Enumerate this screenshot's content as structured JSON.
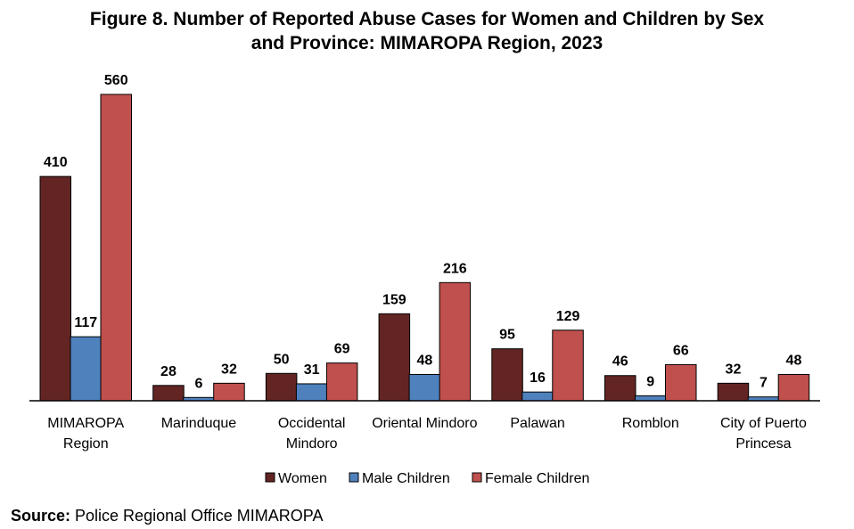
{
  "chart_data": {
    "type": "bar",
    "title_line1": "Figure 8. Number of Reported Abuse Cases for Women and Children by Sex",
    "title_line2": "and Province: MIMAROPA Region, 2023",
    "categories": [
      [
        "MIMAROPA",
        "Region"
      ],
      [
        "Marinduque"
      ],
      [
        "Occidental",
        "Mindoro"
      ],
      [
        "Oriental Mindoro"
      ],
      [
        "Palawan"
      ],
      [
        "Romblon"
      ],
      [
        "City of Puerto",
        "Princesa"
      ]
    ],
    "series": [
      {
        "name": "Women",
        "color": "#632523",
        "values": [
          410,
          28,
          50,
          159,
          95,
          46,
          32
        ]
      },
      {
        "name": "Male Children",
        "color": "#4f81bd",
        "values": [
          117,
          6,
          31,
          48,
          16,
          9,
          7
        ]
      },
      {
        "name": "Female Children",
        "color": "#c0504d",
        "values": [
          560,
          32,
          69,
          216,
          129,
          66,
          48
        ]
      }
    ],
    "ylim": [
      0,
      560
    ],
    "grid": false,
    "legend_position": "bottom"
  },
  "source": {
    "label": "Source:",
    "text": " Police Regional Office MIMAROPA"
  }
}
